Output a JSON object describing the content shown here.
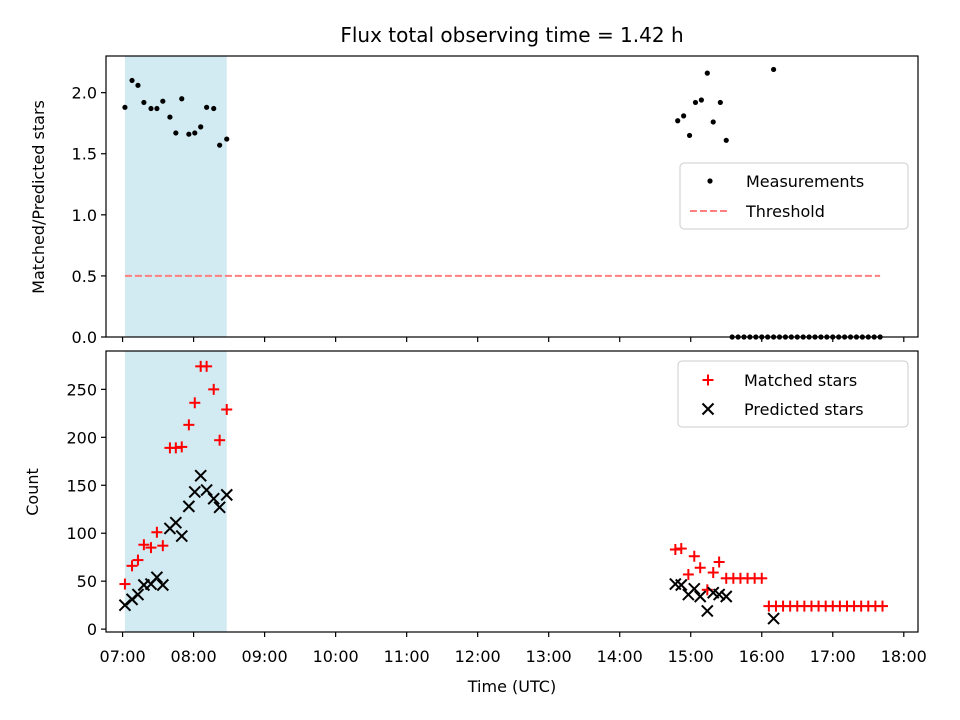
{
  "chart_data": [
    {
      "type": "scatter",
      "title": "Flux total observing time = 1.42 h",
      "xlabel": "",
      "ylabel": "Matched/Predicted stars",
      "xlim": [
        "06:46",
        "18:12"
      ],
      "ylim": [
        0,
        2.3
      ],
      "yticks": [
        "0.0",
        "0.5",
        "1.0",
        "1.5",
        "2.0"
      ],
      "shaded_span": {
        "x_start": "07:02",
        "x_end": "08:28",
        "color": "#add8e6"
      },
      "legend": {
        "placement": "center-right",
        "entries": [
          "Measurements",
          "Threshold"
        ]
      },
      "grid": false,
      "threshold": {
        "name": "Threshold",
        "y": 0.5,
        "x_start": "07:02",
        "x_end": "17:40",
        "color": "#ff7f7f",
        "style": "dashed"
      },
      "series": [
        {
          "name": "Measurements",
          "color": "#000000",
          "marker": "dot",
          "x": [
            "07:02",
            "07:08",
            "07:13",
            "07:18",
            "07:24",
            "07:29",
            "07:34",
            "07:40",
            "07:45",
            "07:50",
            "07:56",
            "08:01",
            "08:06",
            "08:11",
            "08:17",
            "08:22",
            "08:28",
            "14:49",
            "14:54",
            "14:59",
            "15:04",
            "15:09",
            "15:14",
            "15:19",
            "15:25",
            "15:30",
            "15:35",
            "15:40",
            "15:45",
            "15:50",
            "15:55",
            "16:00",
            "16:05",
            "16:10",
            "16:15",
            "16:20",
            "16:25",
            "16:30",
            "16:35",
            "16:40",
            "16:45",
            "16:50",
            "16:55",
            "17:00",
            "17:05",
            "17:10",
            "17:15",
            "17:20",
            "17:25",
            "17:30",
            "17:35",
            "17:40",
            "16:10"
          ],
          "y": [
            1.88,
            2.1,
            2.06,
            1.92,
            1.87,
            1.87,
            1.93,
            1.8,
            1.67,
            1.95,
            1.66,
            1.67,
            1.72,
            1.88,
            1.87,
            1.57,
            1.62,
            1.77,
            1.81,
            1.65,
            1.92,
            1.94,
            2.16,
            1.76,
            1.92,
            1.61,
            0,
            0,
            0,
            0,
            0,
            0,
            0,
            0,
            0,
            0,
            0,
            0,
            0,
            0,
            0,
            0,
            0,
            0,
            0,
            0,
            0,
            0,
            0,
            0,
            0,
            0,
            2.19
          ]
        }
      ]
    },
    {
      "type": "scatter",
      "title": "",
      "xlabel": "Time (UTC)",
      "ylabel": "Count",
      "xlim": [
        "06:46",
        "18:12"
      ],
      "ylim": [
        -3,
        290
      ],
      "yticks": [
        "0",
        "50",
        "100",
        "150",
        "200",
        "250"
      ],
      "xticks": [
        "07:00",
        "08:00",
        "09:00",
        "10:00",
        "11:00",
        "12:00",
        "13:00",
        "14:00",
        "15:00",
        "16:00",
        "17:00",
        "18:00"
      ],
      "shaded_span": {
        "x_start": "07:02",
        "x_end": "08:28",
        "color": "#add8e6"
      },
      "legend": {
        "placement": "top-right",
        "entries": [
          "Matched stars",
          "Predicted stars"
        ]
      },
      "grid": false,
      "series": [
        {
          "name": "Matched stars",
          "color": "#ff0000",
          "marker": "plus",
          "x": [
            "07:02",
            "07:08",
            "07:13",
            "07:18",
            "07:24",
            "07:29",
            "07:34",
            "07:40",
            "07:45",
            "07:50",
            "07:56",
            "08:01",
            "08:06",
            "08:11",
            "08:17",
            "08:22",
            "08:28",
            "14:47",
            "14:52",
            "14:58",
            "15:03",
            "15:08",
            "15:14",
            "15:19",
            "15:24",
            "15:30",
            "15:36",
            "15:42",
            "15:48",
            "15:54",
            "16:00",
            "16:06",
            "16:12",
            "16:18",
            "16:24",
            "16:30",
            "16:36",
            "16:42",
            "16:48",
            "16:54",
            "17:00",
            "17:06",
            "17:12",
            "17:18",
            "17:24",
            "17:30",
            "17:36",
            "17:42"
          ],
          "y": [
            47,
            66,
            72,
            88,
            85,
            101,
            87,
            189,
            189,
            190,
            213,
            236,
            274,
            274,
            250,
            197,
            229,
            83,
            84,
            57,
            76,
            64,
            41,
            59,
            70,
            53,
            53,
            53,
            53,
            53,
            53,
            24,
            24,
            24,
            24,
            24,
            24,
            24,
            24,
            24,
            24,
            24,
            24,
            24,
            24,
            24,
            24,
            24
          ]
        },
        {
          "name": "Predicted stars",
          "color": "#000000",
          "marker": "x",
          "x": [
            "07:02",
            "07:08",
            "07:13",
            "07:18",
            "07:24",
            "07:29",
            "07:34",
            "07:40",
            "07:45",
            "07:50",
            "07:56",
            "08:01",
            "08:06",
            "08:11",
            "08:17",
            "08:22",
            "08:28",
            "14:47",
            "14:52",
            "14:58",
            "15:03",
            "15:08",
            "15:14",
            "15:19",
            "15:24",
            "15:30",
            "16:10"
          ],
          "y": [
            25,
            31,
            36,
            46,
            47,
            54,
            46,
            105,
            111,
            97,
            128,
            143,
            160,
            145,
            136,
            127,
            140,
            47,
            46,
            36,
            42,
            34,
            19,
            38,
            36,
            34,
            11
          ]
        }
      ]
    }
  ]
}
